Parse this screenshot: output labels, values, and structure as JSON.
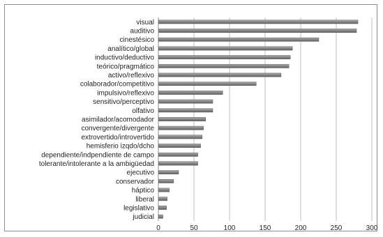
{
  "chart_data": {
    "type": "bar",
    "orientation": "horizontal",
    "categories": [
      "visual",
      "auditivo",
      "cinestésico",
      "analítico/global",
      "inductivo/deductivo",
      "teórico/pragmático",
      "activo/reflexivo",
      "colaborador/competitivo",
      "impulsivo/reflexivo",
      "sensitivo/perceptivo",
      "olfativo",
      "asimilador/acomodador",
      "convergente/divergente",
      "extrovertido/introvertido",
      "hemisferio izqdo/dcho",
      "dependiente/indpendiente de campo",
      "tolerante/intolerante a la ambigüedad",
      "ejecutivo",
      "conservador",
      "háptico",
      "liberal",
      "legislativo",
      "judicial"
    ],
    "values": [
      280,
      278,
      225,
      188,
      185,
      183,
      172,
      137,
      90,
      76,
      76,
      66,
      63,
      61,
      59,
      55,
      55,
      28,
      21,
      15,
      12,
      11,
      6
    ],
    "xlim": [
      0,
      300
    ],
    "xticks": [
      0,
      50,
      100,
      150,
      200,
      250,
      300
    ],
    "title": "",
    "xlabel": "",
    "ylabel": "",
    "grid": "vertical",
    "bar_color": "#808080",
    "grid_color": "#bfbfbf"
  }
}
